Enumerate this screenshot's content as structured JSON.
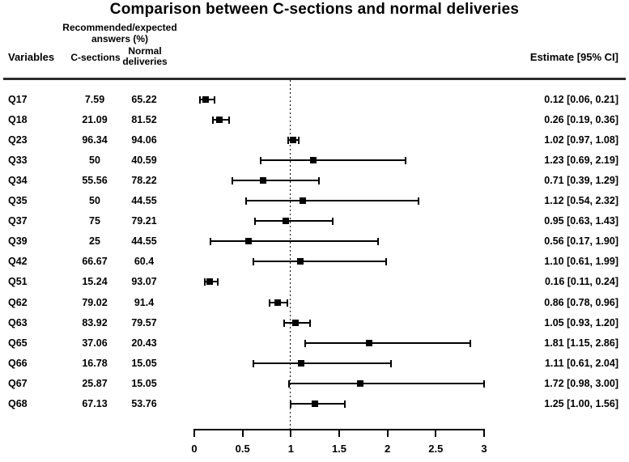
{
  "title": "Comparison between C-sections and normal deliveries",
  "header": {
    "group_line1": "Recommended/expected",
    "group_line2": "answers (%)",
    "variables": "Variables",
    "c_sections": "C-sections",
    "normal_line1": "Normal",
    "normal_line2": "deliveries",
    "estimate": "Estimate [95% CI]"
  },
  "colors": {
    "text": "#000000",
    "marker": "#000000",
    "divider": "#2d2d2d",
    "background": "#ffffff"
  },
  "chart_data": {
    "type": "scatter",
    "variant": "forest-plot",
    "title": "Comparison between C-sections and normal deliveries",
    "xlabel": "",
    "xlim": [
      0,
      3
    ],
    "x_tick_values": [
      0,
      0.5,
      1,
      1.5,
      2,
      2.5,
      3
    ],
    "x_tick_labels": [
      "0",
      "0.5",
      "1",
      "1.5",
      "2",
      "2.5",
      "3"
    ],
    "reference_line_x": 1,
    "grid": false,
    "legend": false,
    "columns": [
      "Variables",
      "C-sections",
      "Normal deliveries",
      "Estimate [95% CI]"
    ],
    "rows": [
      {
        "variable": "Q17",
        "c_sections": "7.59",
        "normal_deliveries": "65.22",
        "estimate": 0.12,
        "ci_low": 0.06,
        "ci_high": 0.21,
        "estimate_label": "0.12 [0.06, 0.21]"
      },
      {
        "variable": "Q18",
        "c_sections": "21.09",
        "normal_deliveries": "81.52",
        "estimate": 0.26,
        "ci_low": 0.19,
        "ci_high": 0.36,
        "estimate_label": "0.26 [0.19, 0.36]"
      },
      {
        "variable": "Q23",
        "c_sections": "96.34",
        "normal_deliveries": "94.06",
        "estimate": 1.02,
        "ci_low": 0.97,
        "ci_high": 1.08,
        "estimate_label": "1.02 [0.97, 1.08]"
      },
      {
        "variable": "Q33",
        "c_sections": "50",
        "normal_deliveries": "40.59",
        "estimate": 1.23,
        "ci_low": 0.69,
        "ci_high": 2.19,
        "estimate_label": "1.23 [0.69, 2.19]"
      },
      {
        "variable": "Q34",
        "c_sections": "55.56",
        "normal_deliveries": "78.22",
        "estimate": 0.71,
        "ci_low": 0.39,
        "ci_high": 1.29,
        "estimate_label": "0.71 [0.39, 1.29]"
      },
      {
        "variable": "Q35",
        "c_sections": "50",
        "normal_deliveries": "44.55",
        "estimate": 1.12,
        "ci_low": 0.54,
        "ci_high": 2.32,
        "estimate_label": "1.12 [0.54, 2.32]"
      },
      {
        "variable": "Q37",
        "c_sections": "75",
        "normal_deliveries": "79.21",
        "estimate": 0.95,
        "ci_low": 0.63,
        "ci_high": 1.43,
        "estimate_label": "0.95 [0.63, 1.43]"
      },
      {
        "variable": "Q39",
        "c_sections": "25",
        "normal_deliveries": "44.55",
        "estimate": 0.56,
        "ci_low": 0.17,
        "ci_high": 1.9,
        "estimate_label": "0.56 [0.17, 1.90]"
      },
      {
        "variable": "Q42",
        "c_sections": "66.67",
        "normal_deliveries": "60.4",
        "estimate": 1.1,
        "ci_low": 0.61,
        "ci_high": 1.99,
        "estimate_label": "1.10 [0.61, 1.99]"
      },
      {
        "variable": "Q51",
        "c_sections": "15.24",
        "normal_deliveries": "93.07",
        "estimate": 0.16,
        "ci_low": 0.11,
        "ci_high": 0.24,
        "estimate_label": "0.16 [0.11, 0.24]"
      },
      {
        "variable": "Q62",
        "c_sections": "79.02",
        "normal_deliveries": "91.4",
        "estimate": 0.86,
        "ci_low": 0.78,
        "ci_high": 0.96,
        "estimate_label": "0.86 [0.78, 0.96]"
      },
      {
        "variable": "Q63",
        "c_sections": "83.92",
        "normal_deliveries": "79.57",
        "estimate": 1.05,
        "ci_low": 0.93,
        "ci_high": 1.2,
        "estimate_label": "1.05 [0.93, 1.20]"
      },
      {
        "variable": "Q65",
        "c_sections": "37.06",
        "normal_deliveries": "20.43",
        "estimate": 1.81,
        "ci_low": 1.15,
        "ci_high": 2.86,
        "estimate_label": "1.81 [1.15, 2.86]"
      },
      {
        "variable": "Q66",
        "c_sections": "16.78",
        "normal_deliveries": "15.05",
        "estimate": 1.11,
        "ci_low": 0.61,
        "ci_high": 2.04,
        "estimate_label": "1.11 [0.61, 2.04]"
      },
      {
        "variable": "Q67",
        "c_sections": "25.87",
        "normal_deliveries": "15.05",
        "estimate": 1.72,
        "ci_low": 0.98,
        "ci_high": 3.0,
        "estimate_label": "1.72 [0.98, 3.00]"
      },
      {
        "variable": "Q68",
        "c_sections": "67.13",
        "normal_deliveries": "53.76",
        "estimate": 1.25,
        "ci_low": 1.0,
        "ci_high": 1.56,
        "estimate_label": "1.25 [1.00, 1.56]"
      }
    ]
  }
}
